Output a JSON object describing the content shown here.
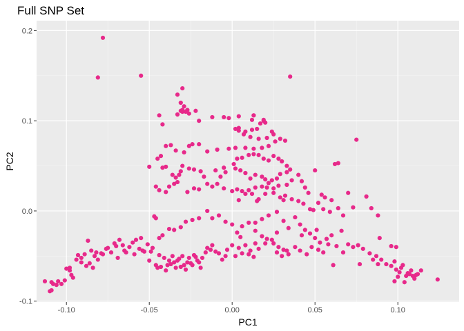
{
  "chart_data": {
    "type": "scatter",
    "title": "Full SNP Set",
    "xlabel": "PC1",
    "ylabel": "PC2",
    "xlim": [
      -0.118,
      0.137
    ],
    "ylim": [
      -0.101,
      0.211
    ],
    "xticks": [
      -0.1,
      -0.05,
      0.0,
      0.05,
      0.1
    ],
    "xtick_labels": [
      "-0.10",
      "-0.05",
      "0.00",
      "0.05",
      "0.10"
    ],
    "yticks": [
      -0.1,
      0.0,
      0.1,
      0.2
    ],
    "ytick_labels": [
      "-0.1",
      "0.0",
      "0.1",
      "0.2"
    ],
    "grid": true,
    "legend": "none",
    "colors": {
      "panel": "#ebebeb",
      "grid_major": "#ffffff",
      "grid_minor": "#f5f5f5",
      "point": "#e7298a",
      "tick_text": "#4d4d4d",
      "tick_mark": "#333333"
    },
    "points": [
      [
        -0.078,
        0.192
      ],
      [
        -0.081,
        0.148
      ],
      [
        -0.055,
        0.15
      ],
      [
        0.035,
        0.149
      ],
      [
        -0.03,
        0.136
      ],
      [
        -0.033,
        0.129
      ],
      [
        -0.044,
        0.106
      ],
      [
        -0.03,
        0.111
      ],
      [
        -0.031,
        0.111
      ],
      [
        -0.042,
        0.096
      ],
      [
        -0.03,
        0.11
      ],
      [
        -0.022,
        0.111
      ],
      [
        -0.03,
        0.112
      ],
      [
        -0.029,
        0.116
      ],
      [
        -0.031,
        0.12
      ],
      [
        -0.033,
        0.107
      ],
      [
        -0.02,
        0.1
      ],
      [
        -0.028,
        0.11
      ],
      [
        -0.026,
        0.108
      ],
      [
        -0.027,
        0.112
      ],
      [
        -0.012,
        0.104
      ],
      [
        -0.005,
        0.104
      ],
      [
        -0.002,
        0.103
      ],
      [
        0.004,
        0.105
      ],
      [
        0.012,
        0.101
      ],
      [
        0.013,
        0.106
      ],
      [
        0.013,
        0.106
      ],
      [
        0.019,
        0.101
      ],
      [
        0.02,
        0.098
      ],
      [
        0.019,
        0.1
      ],
      [
        0.017,
        0.097
      ],
      [
        0.024,
        0.088
      ],
      [
        0.015,
        0.091
      ],
      [
        0.012,
        0.09
      ],
      [
        0.008,
        0.088
      ],
      [
        0.004,
        0.089
      ],
      [
        0.002,
        0.091
      ],
      [
        0.004,
        0.092
      ],
      [
        0.007,
        0.085
      ],
      [
        0.011,
        0.082
      ],
      [
        0.016,
        0.08
      ],
      [
        0.021,
        0.081
      ],
      [
        0.025,
        0.085
      ],
      [
        0.029,
        0.08
      ],
      [
        0.032,
        0.078
      ],
      [
        0.026,
        0.077
      ],
      [
        0.022,
        0.072
      ],
      [
        0.018,
        0.07
      ],
      [
        0.013,
        0.069
      ],
      [
        0.008,
        0.07
      ],
      [
        0.002,
        0.07
      ],
      [
        -0.002,
        0.069
      ],
      [
        -0.009,
        0.068
      ],
      [
        -0.015,
        0.066
      ],
      [
        -0.02,
        0.074
      ],
      [
        -0.024,
        0.074
      ],
      [
        -0.026,
        0.072
      ],
      [
        -0.029,
        0.065
      ],
      [
        -0.034,
        0.067
      ],
      [
        -0.037,
        0.073
      ],
      [
        -0.04,
        0.072
      ],
      [
        -0.043,
        0.061
      ],
      [
        -0.045,
        0.058
      ],
      [
        -0.04,
        0.049
      ],
      [
        -0.042,
        0.048
      ],
      [
        -0.036,
        0.04
      ],
      [
        -0.034,
        0.037
      ],
      [
        -0.033,
        0.032
      ],
      [
        -0.032,
        0.04
      ],
      [
        -0.031,
        0.044
      ],
      [
        -0.03,
        0.05
      ],
      [
        -0.026,
        0.047
      ],
      [
        -0.023,
        0.046
      ],
      [
        -0.019,
        0.044
      ],
      [
        -0.017,
        0.038
      ],
      [
        -0.015,
        0.03
      ],
      [
        -0.01,
        0.045
      ],
      [
        -0.005,
        0.048
      ],
      [
        0.001,
        0.052
      ],
      [
        0.003,
        0.058
      ],
      [
        0.006,
        0.059
      ],
      [
        0.01,
        0.062
      ],
      [
        0.013,
        0.063
      ],
      [
        0.016,
        0.062
      ],
      [
        0.019,
        0.058
      ],
      [
        0.022,
        0.056
      ],
      [
        0.025,
        0.061
      ],
      [
        0.028,
        0.058
      ],
      [
        0.03,
        0.055
      ],
      [
        0.033,
        0.05
      ],
      [
        0.035,
        0.046
      ],
      [
        0.033,
        0.043
      ],
      [
        0.029,
        0.041
      ],
      [
        0.027,
        0.036
      ],
      [
        0.024,
        0.034
      ],
      [
        0.022,
        0.031
      ],
      [
        0.02,
        0.035
      ],
      [
        0.018,
        0.038
      ],
      [
        0.014,
        0.04
      ],
      [
        0.011,
        0.036
      ],
      [
        0.008,
        0.042
      ],
      [
        0.005,
        0.045
      ],
      [
        0.002,
        0.047
      ],
      [
        -0.004,
        0.043
      ],
      [
        -0.007,
        0.038
      ],
      [
        -0.009,
        0.03
      ],
      [
        -0.012,
        0.027
      ],
      [
        -0.005,
        0.025
      ],
      [
        0.0,
        0.022
      ],
      [
        0.006,
        0.022
      ],
      [
        0.01,
        0.023
      ],
      [
        0.014,
        0.026
      ],
      [
        0.018,
        0.027
      ],
      [
        0.021,
        0.026
      ],
      [
        0.025,
        0.025
      ],
      [
        0.028,
        0.028
      ],
      [
        0.033,
        0.029
      ],
      [
        0.036,
        0.034
      ],
      [
        0.04,
        0.04
      ],
      [
        0.042,
        0.033
      ],
      [
        0.044,
        0.026
      ],
      [
        0.046,
        0.02
      ],
      [
        0.05,
        0.045
      ],
      [
        0.054,
        0.018
      ],
      [
        0.056,
        0.015
      ],
      [
        0.06,
        0.012
      ],
      [
        0.062,
        0.052
      ],
      [
        0.064,
        0.053
      ],
      [
        0.075,
        0.079
      ],
      [
        -0.05,
        0.049
      ],
      [
        -0.046,
        0.027
      ],
      [
        -0.044,
        0.023
      ],
      [
        -0.04,
        0.021
      ],
      [
        -0.038,
        0.027
      ],
      [
        -0.035,
        0.03
      ],
      [
        -0.027,
        0.021
      ],
      [
        -0.023,
        0.025
      ],
      [
        -0.02,
        0.024
      ],
      [
        0.003,
        0.024
      ],
      [
        0.004,
        0.012
      ],
      [
        0.008,
        0.019
      ],
      [
        0.012,
        0.019
      ],
      [
        0.015,
        0.011
      ],
      [
        0.016,
        0.013
      ],
      [
        0.02,
        0.019
      ],
      [
        0.025,
        0.02
      ],
      [
        0.029,
        0.015
      ],
      [
        0.032,
        0.017
      ],
      [
        0.031,
        0.012
      ],
      [
        0.036,
        0.013
      ],
      [
        0.04,
        0.011
      ],
      [
        0.043,
        0.008
      ],
      [
        0.047,
        0.002
      ],
      [
        0.049,
        0.001
      ],
      [
        0.052,
        0.009
      ],
      [
        0.055,
        0.002
      ],
      [
        0.059,
        -0.001
      ],
      [
        0.064,
        0.003
      ],
      [
        0.067,
        -0.005
      ],
      [
        0.07,
        0.02
      ],
      [
        0.073,
        0.004
      ],
      [
        0.081,
        0.016
      ],
      [
        0.084,
        0.003
      ],
      [
        0.088,
        -0.005
      ],
      [
        0.089,
        -0.03
      ],
      [
        -0.047,
        -0.006
      ],
      [
        -0.046,
        -0.008
      ],
      [
        -0.042,
        -0.027
      ],
      [
        -0.044,
        -0.03
      ],
      [
        -0.038,
        -0.02
      ],
      [
        -0.035,
        -0.021
      ],
      [
        -0.031,
        -0.018
      ],
      [
        -0.028,
        -0.012
      ],
      [
        -0.024,
        -0.01
      ],
      [
        -0.02,
        -0.008
      ],
      [
        -0.015,
        0.0
      ],
      [
        -0.012,
        -0.008
      ],
      [
        -0.008,
        -0.005
      ],
      [
        -0.004,
        -0.012
      ],
      [
        0.0,
        -0.015
      ],
      [
        0.003,
        -0.024
      ],
      [
        0.006,
        -0.017
      ],
      [
        0.01,
        -0.013
      ],
      [
        0.014,
        -0.013
      ],
      [
        0.018,
        -0.009
      ],
      [
        0.022,
        -0.005
      ],
      [
        0.027,
        -0.001
      ],
      [
        0.031,
        -0.011
      ],
      [
        0.034,
        -0.019
      ],
      [
        0.038,
        -0.007
      ],
      [
        0.041,
        -0.015
      ],
      [
        0.044,
        -0.021
      ],
      [
        0.047,
        -0.025
      ],
      [
        0.05,
        -0.03
      ],
      [
        0.053,
        -0.035
      ],
      [
        0.057,
        -0.031
      ],
      [
        0.06,
        -0.027
      ],
      [
        0.063,
        -0.039
      ],
      [
        0.067,
        -0.046
      ],
      [
        0.07,
        -0.037
      ],
      [
        0.073,
        -0.04
      ],
      [
        0.076,
        -0.038
      ],
      [
        0.079,
        -0.042
      ],
      [
        0.083,
        -0.047
      ],
      [
        0.087,
        -0.05
      ],
      [
        0.09,
        -0.054
      ],
      [
        0.093,
        -0.059
      ],
      [
        0.096,
        -0.061
      ],
      [
        0.099,
        -0.065
      ],
      [
        0.101,
        -0.068
      ],
      [
        0.103,
        -0.06
      ],
      [
        0.105,
        -0.072
      ],
      [
        0.108,
        -0.066
      ],
      [
        0.111,
        -0.071
      ],
      [
        0.114,
        -0.066
      ],
      [
        0.124,
        -0.076
      ],
      [
        0.096,
        -0.039
      ],
      [
        0.099,
        -0.04
      ],
      [
        0.098,
        -0.056
      ],
      [
        0.102,
        -0.063
      ],
      [
        0.106,
        -0.069
      ],
      [
        0.109,
        -0.072
      ],
      [
        0.112,
        -0.07
      ],
      [
        0.098,
        -0.078
      ],
      [
        0.1,
        -0.073
      ],
      [
        0.104,
        -0.079
      ],
      [
        0.107,
        -0.07
      ],
      [
        0.11,
        -0.075
      ],
      [
        0.077,
        -0.059
      ],
      [
        0.085,
        -0.054
      ],
      [
        0.088,
        -0.059
      ],
      [
        0.061,
        -0.06
      ],
      [
        -0.11,
        -0.089
      ],
      [
        -0.109,
        -0.088
      ],
      [
        -0.106,
        -0.082
      ],
      [
        -0.103,
        -0.081
      ],
      [
        -0.109,
        -0.079
      ],
      [
        -0.113,
        -0.078
      ],
      [
        -0.1,
        -0.064
      ],
      [
        -0.098,
        -0.066
      ],
      [
        -0.097,
        -0.071
      ],
      [
        -0.094,
        -0.054
      ],
      [
        -0.091,
        -0.052
      ],
      [
        -0.089,
        -0.048
      ],
      [
        -0.084,
        -0.063
      ],
      [
        -0.086,
        -0.058
      ],
      [
        -0.087,
        -0.033
      ],
      [
        -0.085,
        -0.044
      ],
      [
        -0.082,
        -0.046
      ],
      [
        -0.078,
        -0.048
      ],
      [
        -0.075,
        -0.041
      ],
      [
        -0.071,
        -0.036
      ],
      [
        -0.068,
        -0.032
      ],
      [
        -0.065,
        -0.044
      ],
      [
        -0.062,
        -0.04
      ],
      [
        -0.058,
        -0.032
      ],
      [
        -0.055,
        -0.03
      ],
      [
        -0.051,
        -0.037
      ],
      [
        -0.048,
        -0.041
      ],
      [
        -0.044,
        -0.049
      ],
      [
        -0.041,
        -0.052
      ],
      [
        -0.038,
        -0.055
      ],
      [
        -0.035,
        -0.057
      ],
      [
        -0.032,
        -0.053
      ],
      [
        -0.03,
        -0.05
      ],
      [
        -0.027,
        -0.057
      ],
      [
        -0.024,
        -0.06
      ],
      [
        -0.021,
        -0.055
      ],
      [
        -0.018,
        -0.052
      ],
      [
        -0.015,
        -0.041
      ],
      [
        -0.012,
        -0.038
      ],
      [
        -0.008,
        -0.047
      ],
      [
        -0.004,
        -0.05
      ],
      [
        0.0,
        -0.038
      ],
      [
        0.004,
        -0.041
      ],
      [
        0.008,
        -0.038
      ],
      [
        0.011,
        -0.044
      ],
      [
        0.014,
        -0.036
      ],
      [
        0.018,
        -0.028
      ],
      [
        0.021,
        -0.031
      ],
      [
        0.025,
        -0.036
      ],
      [
        0.028,
        -0.04
      ],
      [
        0.031,
        -0.043
      ],
      [
        0.034,
        -0.048
      ],
      [
        0.038,
        -0.04
      ],
      [
        0.041,
        -0.044
      ],
      [
        0.045,
        -0.048
      ],
      [
        0.048,
        -0.04
      ],
      [
        0.052,
        -0.043
      ],
      [
        0.055,
        -0.046
      ],
      [
        0.058,
        -0.037
      ],
      [
        -0.096,
        -0.074
      ],
      [
        -0.093,
        -0.049
      ],
      [
        -0.088,
        -0.061
      ],
      [
        -0.081,
        -0.054
      ],
      [
        -0.079,
        -0.047
      ],
      [
        -0.073,
        -0.046
      ],
      [
        -0.069,
        -0.052
      ],
      [
        -0.066,
        -0.038
      ],
      [
        -0.06,
        -0.035
      ],
      [
        -0.056,
        -0.042
      ],
      [
        -0.053,
        -0.045
      ],
      [
        -0.049,
        -0.045
      ],
      [
        -0.046,
        -0.06
      ],
      [
        -0.043,
        -0.062
      ],
      [
        -0.04,
        -0.066
      ],
      [
        -0.037,
        -0.059
      ],
      [
        -0.034,
        -0.063
      ],
      [
        -0.031,
        -0.062
      ],
      [
        -0.028,
        -0.065
      ],
      [
        -0.025,
        -0.058
      ],
      [
        -0.022,
        -0.051
      ],
      [
        -0.019,
        -0.063
      ],
      [
        -0.016,
        -0.046
      ],
      [
        -0.013,
        -0.043
      ],
      [
        -0.01,
        -0.045
      ],
      [
        -0.006,
        -0.054
      ],
      [
        -0.003,
        -0.043
      ],
      [
        0.002,
        -0.05
      ],
      [
        0.006,
        -0.047
      ],
      [
        0.01,
        -0.048
      ],
      [
        0.013,
        -0.051
      ],
      [
        0.016,
        -0.042
      ],
      [
        0.02,
        -0.036
      ],
      [
        0.024,
        -0.032
      ],
      [
        0.027,
        -0.046
      ],
      [
        0.03,
        -0.05
      ],
      [
        0.033,
        -0.044
      ],
      [
        -0.108,
        -0.081
      ],
      [
        -0.105,
        -0.078
      ],
      [
        -0.101,
        -0.077
      ],
      [
        -0.098,
        -0.063
      ],
      [
        -0.091,
        -0.057
      ],
      [
        -0.083,
        -0.05
      ],
      [
        -0.076,
        -0.042
      ],
      [
        -0.07,
        -0.039
      ],
      [
        -0.064,
        -0.046
      ],
      [
        -0.059,
        -0.048
      ],
      [
        -0.054,
        -0.044
      ],
      [
        -0.05,
        -0.055
      ],
      [
        -0.045,
        -0.063
      ],
      [
        -0.039,
        -0.06
      ],
      [
        -0.036,
        -0.05
      ],
      [
        -0.033,
        -0.055
      ],
      [
        -0.029,
        -0.06
      ],
      [
        -0.026,
        -0.052
      ],
      [
        -0.023,
        -0.049
      ],
      [
        -0.02,
        -0.057
      ],
      [
        0.005,
        -0.029
      ],
      [
        0.014,
        -0.022
      ],
      [
        0.027,
        -0.024
      ],
      [
        0.042,
        -0.027
      ],
      [
        0.051,
        -0.021
      ],
      [
        0.066,
        -0.022
      ]
    ]
  }
}
